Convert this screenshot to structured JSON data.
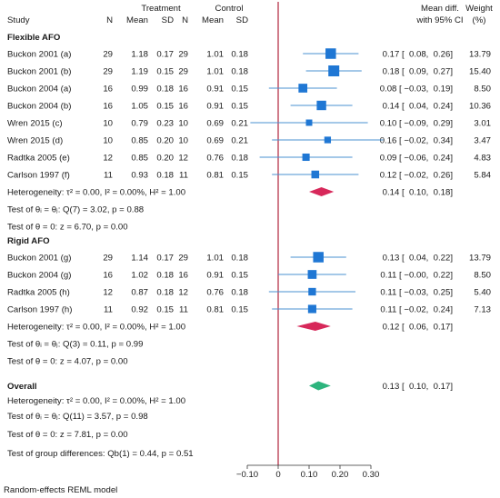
{
  "header": {
    "study": "Study",
    "treatment": "Treatment",
    "control": "Control",
    "n": "N",
    "mean": "Mean",
    "sd": "SD",
    "effect_line1": "Mean diff.",
    "effect_line2": "with 95% CI",
    "weight_line1": "Weight",
    "weight_line2": "(%)"
  },
  "groups": [
    {
      "name": "Flexible AFO",
      "studies": [
        {
          "label": "Buckon 2001 (a)",
          "tn": "29",
          "tmean": "1.18",
          "tsd": "0.17",
          "cn": "29",
          "cmean": "1.01",
          "csd": "0.18",
          "est": 0.17,
          "lo": 0.08,
          "hi": 0.26,
          "ci_text": "0.17 [  0.08,  0.26]",
          "weight": 13.79,
          "weight_text": "13.79"
        },
        {
          "label": "Buckon 2001 (b)",
          "tn": "29",
          "tmean": "1.19",
          "tsd": "0.15",
          "cn": "29",
          "cmean": "1.01",
          "csd": "0.18",
          "est": 0.18,
          "lo": 0.09,
          "hi": 0.27,
          "ci_text": "0.18 [  0.09,  0.27]",
          "weight": 15.4,
          "weight_text": "15.40"
        },
        {
          "label": "Buckon 2004 (a)",
          "tn": "16",
          "tmean": "0.99",
          "tsd": "0.18",
          "cn": "16",
          "cmean": "0.91",
          "csd": "0.15",
          "est": 0.08,
          "lo": -0.03,
          "hi": 0.19,
          "ci_text": "0.08 [ −0.03,  0.19]",
          "weight": 8.5,
          "weight_text": "8.50"
        },
        {
          "label": "Buckon 2004 (b)",
          "tn": "16",
          "tmean": "1.05",
          "tsd": "0.15",
          "cn": "16",
          "cmean": "0.91",
          "csd": "0.15",
          "est": 0.14,
          "lo": 0.04,
          "hi": 0.24,
          "ci_text": "0.14 [  0.04,  0.24]",
          "weight": 10.36,
          "weight_text": "10.36"
        },
        {
          "label": "Wren 2015 (c)",
          "tn": "10",
          "tmean": "0.79",
          "tsd": "0.23",
          "cn": "10",
          "cmean": "0.69",
          "csd": "0.21",
          "est": 0.1,
          "lo": -0.09,
          "hi": 0.29,
          "ci_text": "0.10 [ −0.09,  0.29]",
          "weight": 3.01,
          "weight_text": "3.01"
        },
        {
          "label": "Wren 2015 (d)",
          "tn": "10",
          "tmean": "0.85",
          "tsd": "0.20",
          "cn": "10",
          "cmean": "0.69",
          "csd": "0.21",
          "est": 0.16,
          "lo": -0.02,
          "hi": 0.34,
          "ci_text": "0.16 [ −0.02,  0.34]",
          "weight": 3.47,
          "weight_text": "3.47"
        },
        {
          "label": "Radtka 2005 (e)",
          "tn": "12",
          "tmean": "0.85",
          "tsd": "0.20",
          "cn": "12",
          "cmean": "0.76",
          "csd": "0.18",
          "est": 0.09,
          "lo": -0.06,
          "hi": 0.24,
          "ci_text": "0.09 [ −0.06,  0.24]",
          "weight": 4.83,
          "weight_text": "4.83"
        },
        {
          "label": "Carlson 1997 (f)",
          "tn": "11",
          "tmean": "0.93",
          "tsd": "0.18",
          "cn": "11",
          "cmean": "0.81",
          "csd": "0.15",
          "est": 0.12,
          "lo": -0.02,
          "hi": 0.26,
          "ci_text": "0.12 [ −0.02,  0.26]",
          "weight": 5.84,
          "weight_text": "5.84"
        }
      ],
      "pooled": {
        "est": 0.14,
        "lo": 0.1,
        "hi": 0.18,
        "ci_text": "0.14 [  0.10,  0.18]"
      },
      "heterogeneity": "Heterogeneity: τ² = 0.00, I² = 0.00%, H² = 1.00",
      "q_test": "Test of θᵢ = θⱼ: Q(7) = 3.02, p = 0.88",
      "z_test": "Test of θ = 0: z = 6.70, p = 0.00"
    },
    {
      "name": "Rigid AFO",
      "studies": [
        {
          "label": "Buckon 2001 (g)",
          "tn": "29",
          "tmean": "1.14",
          "tsd": "0.17",
          "cn": "29",
          "cmean": "1.01",
          "csd": "0.18",
          "est": 0.13,
          "lo": 0.04,
          "hi": 0.22,
          "ci_text": "0.13 [  0.04,  0.22]",
          "weight": 13.79,
          "weight_text": "13.79"
        },
        {
          "label": "Buckon 2004 (g)",
          "tn": "16",
          "tmean": "1.02",
          "tsd": "0.18",
          "cn": "16",
          "cmean": "0.91",
          "csd": "0.15",
          "est": 0.11,
          "lo": -0.0,
          "hi": 0.22,
          "ci_text": "0.11 [ −0.00,  0.22]",
          "weight": 8.5,
          "weight_text": "8.50"
        },
        {
          "label": "Radtka 2005 (h)",
          "tn": "12",
          "tmean": "0.87",
          "tsd": "0.18",
          "cn": "12",
          "cmean": "0.76",
          "csd": "0.18",
          "est": 0.11,
          "lo": -0.03,
          "hi": 0.25,
          "ci_text": "0.11 [ −0.03,  0.25]",
          "weight": 5.4,
          "weight_text": "5.40"
        },
        {
          "label": "Carlson 1997 (h)",
          "tn": "11",
          "tmean": "0.92",
          "tsd": "0.15",
          "cn": "11",
          "cmean": "0.81",
          "csd": "0.15",
          "est": 0.11,
          "lo": -0.02,
          "hi": 0.24,
          "ci_text": "0.11 [ −0.02,  0.24]",
          "weight": 7.13,
          "weight_text": "7.13"
        }
      ],
      "pooled": {
        "est": 0.12,
        "lo": 0.06,
        "hi": 0.17,
        "ci_text": "0.12 [  0.06,  0.17]"
      },
      "heterogeneity": "Heterogeneity: τ² = 0.00, I² = 0.00%, H² = 1.00",
      "q_test": "Test of θᵢ = θⱼ: Q(3) = 0.11, p = 0.99",
      "z_test": "Test of θ = 0: z = 4.07, p = 0.00"
    }
  ],
  "overall": {
    "name": "Overall",
    "est": 0.13,
    "lo": 0.1,
    "hi": 0.17,
    "ci_text": "0.13 [  0.10,  0.17]",
    "heterogeneity": "Heterogeneity: τ² = 0.00, I² = 0.00%, H² = 1.00",
    "q_test": "Test of θᵢ = θⱼ: Q(11) = 3.57, p = 0.98",
    "z_test": "Test of θ = 0: z = 7.81, p = 0.00"
  },
  "group_diff_test": "Test of group differences: Qb(1) = 0.44, p = 0.51",
  "footnote": "Random-effects REML model",
  "chart_data": {
    "type": "forest",
    "xlim": [
      -0.1,
      0.3
    ],
    "null_line": 0,
    "ticks": [
      -0.1,
      0,
      0.1,
      0.2,
      0.3
    ],
    "tick_labels": [
      "−0.10",
      "0",
      "0.10",
      "0.20",
      "0.30"
    ],
    "colors": {
      "study_marker": "#1f77d4",
      "ci_line": "#4a90d0",
      "subgroup_diamond": "#d7285a",
      "overall_diamond": "#2db47d",
      "null_line": "#b0243c",
      "grid_line": "#333333"
    }
  }
}
